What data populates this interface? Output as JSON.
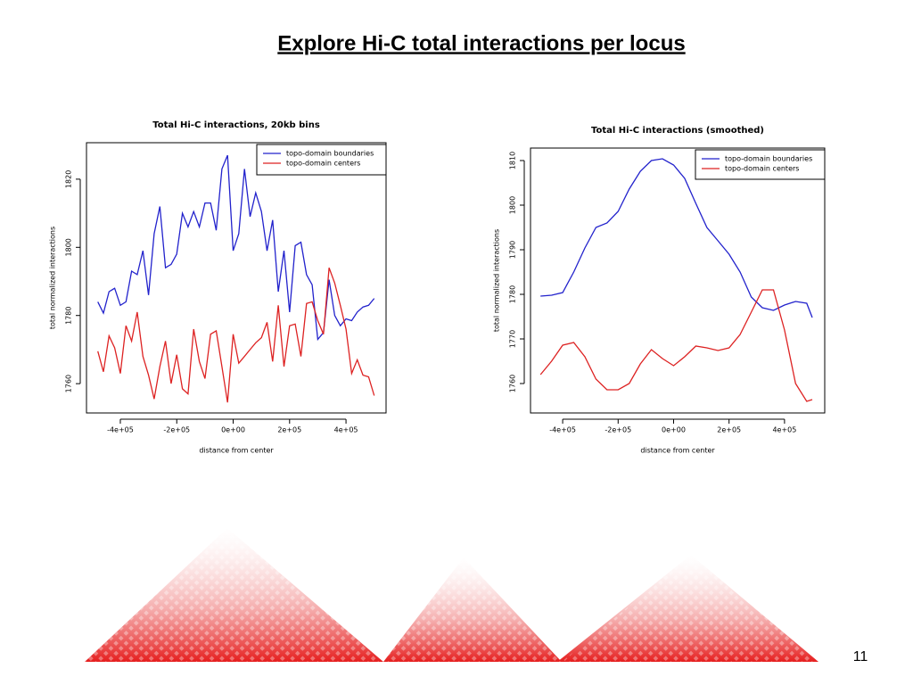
{
  "title": "Explore Hi-C total interactions per locus",
  "page_number": "11",
  "chart_data": [
    {
      "type": "line",
      "title": "Total Hi-C interactions, 20kb bins",
      "xlabel": "distance from center",
      "ylabel": "total normalized interactions",
      "x": [
        -480000,
        -460000,
        -440000,
        -420000,
        -400000,
        -380000,
        -360000,
        -340000,
        -320000,
        -300000,
        -280000,
        -260000,
        -240000,
        -220000,
        -200000,
        -180000,
        -160000,
        -140000,
        -120000,
        -100000,
        -80000,
        -60000,
        -40000,
        -20000,
        0,
        20000,
        40000,
        60000,
        80000,
        100000,
        120000,
        140000,
        160000,
        180000,
        200000,
        220000,
        240000,
        260000,
        280000,
        300000,
        320000,
        340000,
        360000,
        380000,
        400000,
        420000,
        440000,
        460000,
        480000,
        500000
      ],
      "series": [
        {
          "name": "topo-domain boundaries",
          "color": "#2222cc",
          "values": [
            1784,
            1780.7,
            1787,
            1788,
            1783,
            1784,
            1793,
            1792,
            1799,
            1786,
            1804,
            1812,
            1794,
            1795,
            1798,
            1810,
            1806,
            1810.5,
            1806,
            1813,
            1813,
            1805,
            1823,
            1827,
            1799,
            1804,
            1823,
            1809,
            1816,
            1810.5,
            1799,
            1808,
            1787,
            1799,
            1781,
            1800.5,
            1801.5,
            1792,
            1789,
            1773,
            1775,
            1790.5,
            1780,
            1777,
            1779,
            1778.5,
            1781,
            1782.5,
            1783,
            1785
          ]
        },
        {
          "name": "topo-domain centers",
          "color": "#dd2222",
          "values": [
            1769.5,
            1763.5,
            1774,
            1770.5,
            1763,
            1777,
            1772.5,
            1781,
            1768,
            1762.5,
            1755.5,
            1765,
            1772.5,
            1760,
            1768.5,
            1758.5,
            1757,
            1776,
            1766.5,
            1761.5,
            1774.5,
            1775.5,
            1765,
            1754.5,
            1774.5,
            1766,
            1768,
            1770,
            1772,
            1773.5,
            1778,
            1766.5,
            1783,
            1765,
            1777,
            1777.5,
            1768,
            1783.5,
            1784,
            1778.5,
            1774.5,
            1794,
            1789.5,
            1783,
            1776,
            1763,
            1767,
            1762.5,
            1762,
            1756.5
          ]
        }
      ],
      "xlim": [
        -520000,
        542000
      ],
      "ylim": [
        1751.4,
        1830.7
      ],
      "xticks": [
        {
          "value": -400000,
          "label": "-4e+05"
        },
        {
          "value": -200000,
          "label": "-2e+05"
        },
        {
          "value": 0,
          "label": "0e+00"
        },
        {
          "value": 200000,
          "label": "2e+05"
        },
        {
          "value": 400000,
          "label": "4e+05"
        }
      ],
      "yticks": [
        1760,
        1780,
        1800,
        1820
      ],
      "legend": "topright"
    },
    {
      "type": "line",
      "title": "Total Hi-C interactions (smoothed)",
      "xlabel": "distance from center",
      "ylabel": "total normalized interactions",
      "x": [
        -480000,
        -440000,
        -400000,
        -360000,
        -320000,
        -280000,
        -240000,
        -200000,
        -160000,
        -120000,
        -80000,
        -40000,
        0,
        40000,
        80000,
        120000,
        160000,
        200000,
        240000,
        280000,
        320000,
        360000,
        400000,
        440000,
        480000,
        500000
      ],
      "series": [
        {
          "name": "topo-domain boundaries",
          "color": "#2222cc",
          "values": [
            1779.6,
            1779.8,
            1780.4,
            1785,
            1790.4,
            1795,
            1796,
            1798.6,
            1803.6,
            1807.6,
            1810,
            1810.4,
            1809,
            1806,
            1800.4,
            1795,
            1792,
            1789,
            1785,
            1779.4,
            1777,
            1776.4,
            1777.6,
            1778.4,
            1778,
            1774.8
          ]
        },
        {
          "name": "topo-domain centers",
          "color": "#dd2222",
          "values": [
            1762,
            1765,
            1768.6,
            1769.2,
            1766,
            1761,
            1758.6,
            1758.6,
            1760,
            1764.4,
            1767.6,
            1765.6,
            1764,
            1766,
            1768.4,
            1768,
            1767.4,
            1768,
            1771,
            1776,
            1781,
            1781,
            1772,
            1760,
            1756,
            1756.4
          ]
        }
      ],
      "xlim": [
        -516000,
        545000
      ],
      "ylim": [
        1753.4,
        1812.8
      ],
      "xticks": [
        {
          "value": -400000,
          "label": "-4e+05"
        },
        {
          "value": -200000,
          "label": "-2e+05"
        },
        {
          "value": 0,
          "label": "0e+00"
        },
        {
          "value": 200000,
          "label": "2e+05"
        },
        {
          "value": 400000,
          "label": "4e+05"
        }
      ],
      "yticks": [
        1760,
        1770,
        1780,
        1790,
        1800,
        1810
      ],
      "legend": "topright"
    }
  ]
}
